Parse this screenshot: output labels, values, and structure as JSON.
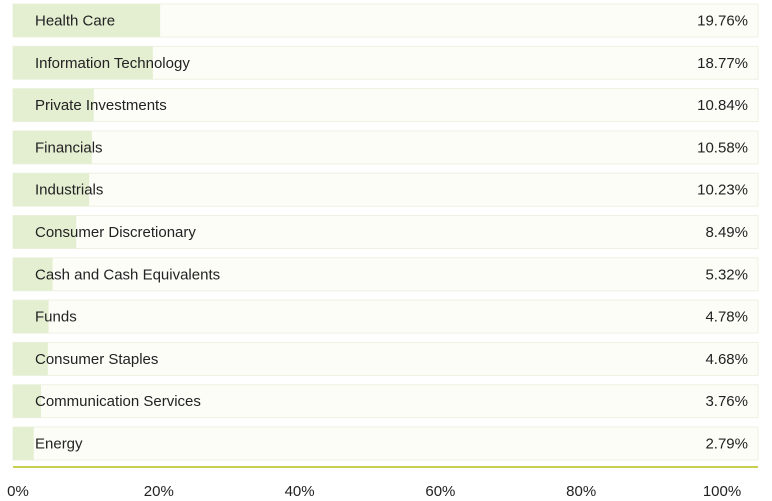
{
  "chart_data": {
    "type": "bar",
    "orientation": "horizontal",
    "categories": [
      "Health Care",
      "Information Technology",
      "Private Investments",
      "Financials",
      "Industrials",
      "Consumer Discretionary",
      "Cash and Cash Equivalents",
      "Funds",
      "Consumer Staples",
      "Communication Services",
      "Energy"
    ],
    "values": [
      19.76,
      18.77,
      10.84,
      10.58,
      10.23,
      8.49,
      5.32,
      4.78,
      4.68,
      3.76,
      2.79
    ],
    "value_labels": [
      "19.76%",
      "18.77%",
      "10.84%",
      "10.58%",
      "10.23%",
      "8.49%",
      "5.32%",
      "4.78%",
      "4.68%",
      "3.76%",
      "2.79%"
    ],
    "color": "#e4efd2",
    "xlim": [
      0,
      100
    ],
    "xticks": [
      {
        "value": 0,
        "label": "0%"
      },
      {
        "value": 20,
        "label": "20%"
      },
      {
        "value": 40,
        "label": "40%"
      },
      {
        "value": 60,
        "label": "60%"
      },
      {
        "value": 80,
        "label": "80%"
      },
      {
        "value": 100,
        "label": "100%"
      }
    ]
  }
}
